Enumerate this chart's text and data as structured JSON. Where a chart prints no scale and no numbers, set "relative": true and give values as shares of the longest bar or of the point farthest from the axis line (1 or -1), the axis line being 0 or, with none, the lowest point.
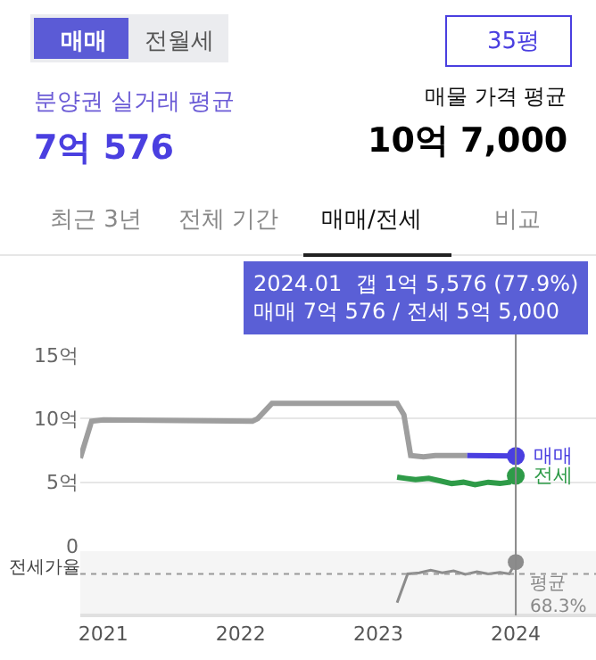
{
  "chart_data": [
    {
      "type": "line",
      "xlim": [
        "2020-11-01",
        "2024-08-01"
      ],
      "xticks": [
        "2021",
        "2022",
        "2023",
        "2024"
      ],
      "ylim": [
        0,
        15
      ],
      "yticks": [
        {
          "value": 0,
          "label": "0"
        },
        {
          "value": 5,
          "label": "5억"
        },
        {
          "value": 10,
          "label": "10억"
        },
        {
          "value": 15,
          "label": "15억"
        }
      ],
      "grid": "y",
      "legend": false,
      "tick_labels": "y",
      "annotations": [
        "매매",
        "전월세",
        "35평",
        "분양권 실거래 평균",
        "7억 576",
        "매물 가격 평균",
        "10억 7,000",
        "최근 3년",
        "전체 기간",
        "매매/전세",
        "비교",
        "2024.01  갭 1억 5,576 (77.9%)\n매매 7억 576 / 전세 5억 5,000"
      ],
      "ref_lines": [
        {
          "axis": "x",
          "value": "2024-01-01",
          "color": "#888888"
        }
      ],
      "series": [
        {
          "color": "#9e9e9e",
          "x": [
            "2020-11-01",
            "2020-12-01",
            "2021-01-01",
            "2022-02-01",
            "2022-02-15",
            "2022-03-25",
            "2023-02-20",
            "2023-03-10",
            "2023-03-28",
            "2023-05-01",
            "2023-06-01",
            "2023-08-25"
          ],
          "values": [
            6.9,
            9.8,
            9.9,
            9.8,
            10.0,
            11.2,
            11.2,
            10.3,
            7.1,
            7.0,
            7.1,
            7.1
          ]
        },
        {
          "name": "매매",
          "color": "#4a3fe0",
          "x": [
            "2023-08-25",
            "2024-01-01"
          ],
          "values": [
            7.1,
            7.0576
          ]
        },
        {
          "type": "scatter",
          "color": "#4a3fe0",
          "x": [
            "2024-01-01"
          ],
          "values": [
            7.0576
          ]
        },
        {
          "name": "전세",
          "color": "#2e9b48",
          "x": [
            "2023-02-20",
            "2023-03-15",
            "2023-04-10",
            "2023-05-15",
            "2023-06-15",
            "2023-07-15",
            "2023-08-15",
            "2023-09-15",
            "2023-10-20",
            "2023-11-20",
            "2023-12-15",
            "2024-01-01"
          ],
          "values": [
            5.4,
            5.3,
            5.2,
            5.3,
            5.1,
            4.9,
            5.0,
            4.8,
            5.0,
            4.9,
            5.0,
            5.5
          ]
        },
        {
          "type": "scatter",
          "color": "#2e9b48",
          "x": [
            "2024-01-01"
          ],
          "values": [
            5.5
          ]
        }
      ]
    },
    {
      "type": "line",
      "relative": true,
      "ylabel": "전세가율",
      "xlim": [
        "2020-11-01",
        "2024-08-01"
      ],
      "xticks": [
        "2021",
        "2022",
        "2023",
        "2024"
      ],
      "tick_labels": "x",
      "ref_lines": [
        {
          "axis": "y",
          "value": 0.77,
          "label": "평균\n68.3%",
          "line_style": "dotted",
          "color": "#999999"
        }
      ],
      "series": [
        {
          "color": "#8c8c8c",
          "x": [
            "2023-02-20",
            "2023-03-20",
            "2023-04-20",
            "2023-05-20",
            "2023-06-20",
            "2023-07-20",
            "2023-08-20",
            "2023-09-20",
            "2023-10-20",
            "2023-11-20",
            "2023-12-15",
            "2024-01-01"
          ],
          "values": [
            0.21,
            0.77,
            0.79,
            0.84,
            0.79,
            0.83,
            0.76,
            0.81,
            0.77,
            0.8,
            0.77,
            1
          ]
        },
        {
          "type": "scatter",
          "color": "#8c8c8c",
          "x": [
            "2024-01-01"
          ],
          "values": [
            1
          ]
        }
      ]
    }
  ]
}
